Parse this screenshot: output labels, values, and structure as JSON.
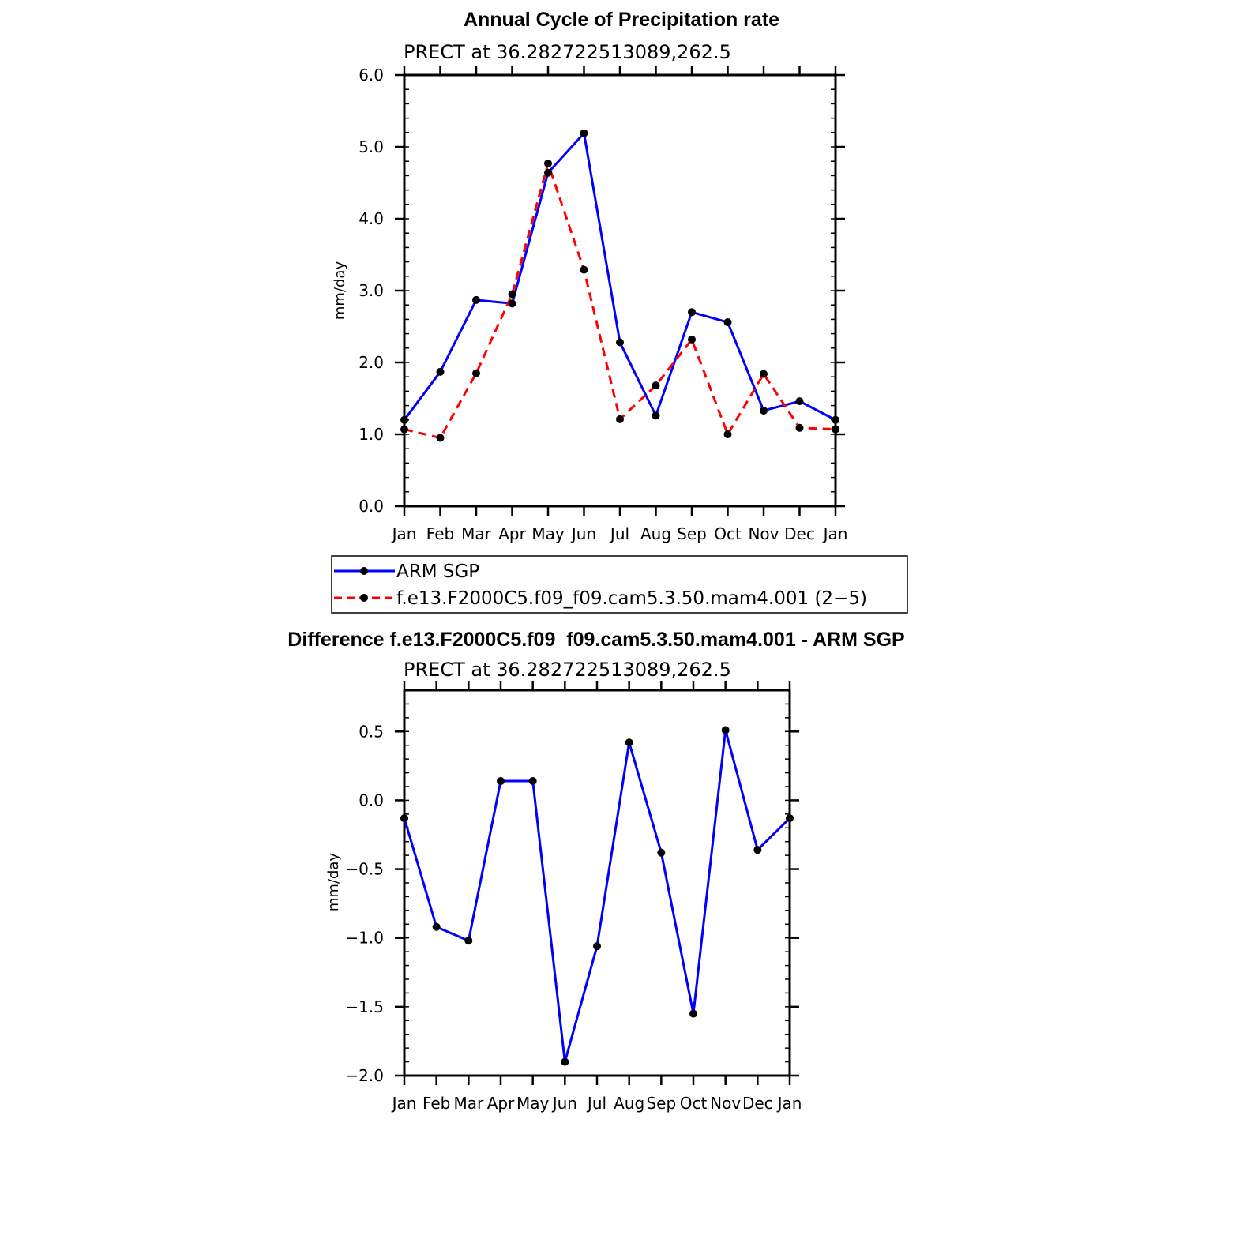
{
  "chart_data": [
    {
      "type": "line",
      "title": "Annual Cycle of Precipitation rate",
      "subtitle": "PRECT at 36.282722513089,262.5",
      "ylabel": "mm/day",
      "xlabel": "",
      "categories": [
        "Jan",
        "Feb",
        "Mar",
        "Apr",
        "May",
        "Jun",
        "Jul",
        "Aug",
        "Sep",
        "Oct",
        "Nov",
        "Dec",
        "Jan"
      ],
      "ylim": [
        0,
        6
      ],
      "yticks": [
        0,
        1,
        2,
        3,
        4,
        5,
        6
      ],
      "ytick_labels": [
        "0.0",
        "1.0",
        "2.0",
        "3.0",
        "4.0",
        "5.0",
        "6.0"
      ],
      "legend": "below",
      "series": [
        {
          "name": "ARM SGP",
          "color": "#0000ff",
          "dash": false,
          "values": [
            1.2,
            1.87,
            2.87,
            2.82,
            4.64,
            5.19,
            2.28,
            1.26,
            2.7,
            2.56,
            1.33,
            1.46,
            1.2
          ]
        },
        {
          "name": "f.e13.F2000C5.f09_f09.cam5.3.50.mam4.001 (2−5)",
          "color": "#ff0000",
          "dash": true,
          "values": [
            1.07,
            0.95,
            1.85,
            2.95,
            4.77,
            3.29,
            1.21,
            1.68,
            2.32,
            1.0,
            1.84,
            1.09,
            1.07
          ]
        }
      ]
    },
    {
      "type": "line",
      "title": "Difference f.e13.F2000C5.f09_f09.cam5.3.50.mam4.001 - ARM SGP",
      "subtitle": "PRECT at 36.282722513089,262.5",
      "ylabel": "mm/day",
      "xlabel": "",
      "categories": [
        "Jan",
        "Feb",
        "Mar",
        "Apr",
        "May",
        "Jun",
        "Jul",
        "Aug",
        "Sep",
        "Oct",
        "Nov",
        "Dec",
        "Jan"
      ],
      "ylim": [
        -2.0,
        0.8
      ],
      "yticks": [
        -2.0,
        -1.5,
        -1.0,
        -0.5,
        0.0,
        0.5
      ],
      "ytick_labels": [
        "−2.0",
        "−1.5",
        "−1.0",
        "−0.5",
        "0.0",
        "0.5"
      ],
      "series": [
        {
          "name": "",
          "color": "#0000ff",
          "dash": false,
          "values": [
            -0.13,
            -0.92,
            -1.02,
            0.14,
            0.14,
            -1.9,
            -1.06,
            0.42,
            -0.38,
            -1.55,
            0.51,
            -0.36,
            -0.13
          ]
        }
      ]
    }
  ]
}
